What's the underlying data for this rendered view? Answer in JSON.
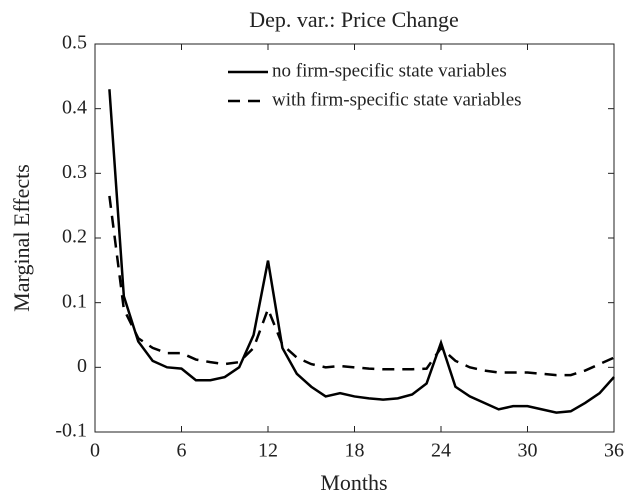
{
  "chart_data": {
    "type": "line",
    "title": "Dep. var.: Price Change",
    "xlabel": "Months",
    "ylabel": "Marginal Effects",
    "x": [
      1,
      2,
      3,
      4,
      5,
      6,
      7,
      8,
      9,
      10,
      11,
      12,
      13,
      14,
      15,
      16,
      17,
      18,
      19,
      20,
      21,
      22,
      23,
      24,
      25,
      26,
      27,
      28,
      29,
      30,
      31,
      32,
      33,
      34,
      35,
      36
    ],
    "series": [
      {
        "name": "no firm-specific state variables",
        "color": "#000000",
        "style": "solid",
        "values": [
          0.43,
          0.11,
          0.04,
          0.01,
          0.0,
          -0.002,
          -0.02,
          -0.02,
          -0.015,
          0.0,
          0.05,
          0.165,
          0.03,
          -0.01,
          -0.03,
          -0.045,
          -0.04,
          -0.045,
          -0.048,
          -0.05,
          -0.048,
          -0.042,
          -0.025,
          0.038,
          -0.03,
          -0.045,
          -0.055,
          -0.065,
          -0.06,
          -0.06,
          -0.065,
          -0.07,
          -0.068,
          -0.055,
          -0.04,
          -0.015
        ]
      },
      {
        "name": "with firm-specific state variables",
        "color": "#000000",
        "style": "dashed",
        "values": [
          0.265,
          0.09,
          0.045,
          0.03,
          0.022,
          0.022,
          0.012,
          0.008,
          0.005,
          0.008,
          0.03,
          0.09,
          0.035,
          0.015,
          0.005,
          0.0,
          0.002,
          0.0,
          -0.002,
          -0.003,
          -0.003,
          -0.003,
          -0.002,
          0.03,
          0.01,
          0.0,
          -0.005,
          -0.008,
          -0.008,
          -0.008,
          -0.01,
          -0.012,
          -0.012,
          -0.005,
          0.005,
          0.015
        ]
      }
    ],
    "xlim": [
      0,
      36
    ],
    "xticks": [
      0,
      6,
      12,
      18,
      24,
      30,
      36
    ],
    "ylim": [
      -0.1,
      0.5
    ],
    "yticks": [
      -0.1,
      0,
      0.1,
      0.2,
      0.3,
      0.4,
      0.5
    ],
    "legend": "upper right",
    "grid": false
  }
}
